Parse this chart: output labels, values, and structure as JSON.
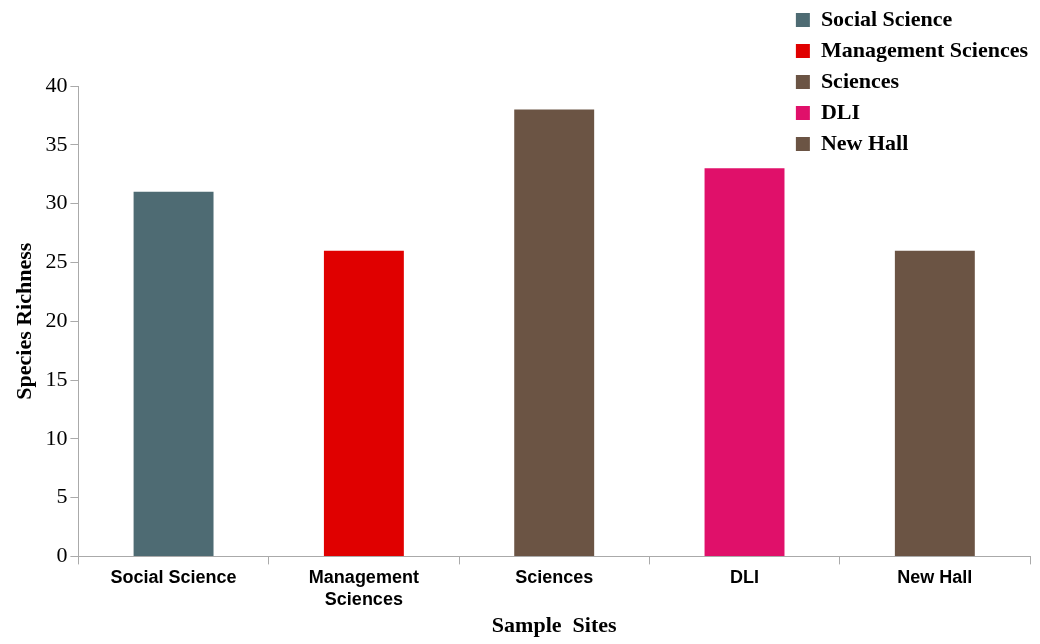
{
  "chart_data": {
    "type": "bar",
    "xlabel": "Sample  Sites",
    "ylabel": "Species Richness",
    "categories": [
      "Social Science",
      "Management Sciences",
      "Sciences",
      "DLI",
      "New Hall"
    ],
    "series": [
      {
        "name": "Social Science",
        "color": "#4e6b73",
        "values": [
          31,
          null,
          null,
          null,
          null
        ]
      },
      {
        "name": "Management Sciences",
        "color": "#e00000",
        "values": [
          null,
          26,
          null,
          null,
          null
        ]
      },
      {
        "name": "Sciences",
        "color": "#6b5444",
        "values": [
          null,
          null,
          38,
          null,
          null
        ]
      },
      {
        "name": "DLI",
        "color": "#e0106a",
        "values": [
          null,
          null,
          null,
          33,
          null
        ]
      },
      {
        "name": "New Hall",
        "color": "#6b5444",
        "values": [
          null,
          null,
          null,
          null,
          26
        ]
      }
    ],
    "ylim": [
      0,
      40
    ],
    "yticks": [
      0,
      5,
      10,
      15,
      20,
      25,
      30,
      35,
      40
    ],
    "grid": false,
    "legend": "top right"
  }
}
